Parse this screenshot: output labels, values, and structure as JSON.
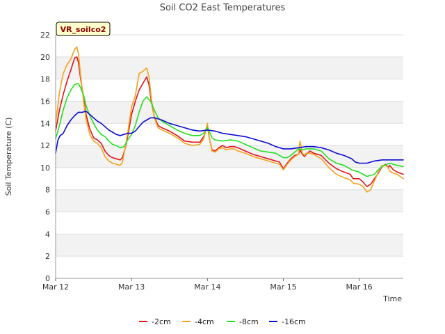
{
  "chart_data": {
    "type": "line",
    "title": "Soil CO2 East Temperatures",
    "xlabel": "Time",
    "ylabel": "Soil Temperature (C)",
    "badge": "VR_soilco2",
    "x_ticks": [
      "Mar 12",
      "Mar 13",
      "Mar 14",
      "Mar 15",
      "Mar 16"
    ],
    "x_tick_days": [
      0,
      1,
      2,
      3,
      4
    ],
    "xlim": [
      0,
      4.58
    ],
    "ylim": [
      0,
      22
    ],
    "y_ticks": [
      0,
      2,
      4,
      6,
      8,
      10,
      12,
      14,
      16,
      18,
      20,
      22
    ],
    "grid": true,
    "legend_position": "bottom",
    "series": [
      {
        "name": "-2cm",
        "color": "#e0131a",
        "points": [
          [
            0.0,
            13.3
          ],
          [
            0.05,
            15.2
          ],
          [
            0.1,
            16.6
          ],
          [
            0.15,
            17.8
          ],
          [
            0.2,
            18.8
          ],
          [
            0.25,
            19.9
          ],
          [
            0.28,
            20.0
          ],
          [
            0.3,
            19.5
          ],
          [
            0.33,
            18.0
          ],
          [
            0.37,
            16.2
          ],
          [
            0.4,
            14.8
          ],
          [
            0.45,
            13.5
          ],
          [
            0.5,
            12.7
          ],
          [
            0.55,
            12.5
          ],
          [
            0.6,
            12.2
          ],
          [
            0.65,
            11.5
          ],
          [
            0.7,
            11.1
          ],
          [
            0.75,
            10.9
          ],
          [
            0.8,
            10.8
          ],
          [
            0.85,
            10.7
          ],
          [
            0.88,
            10.9
          ],
          [
            0.92,
            11.8
          ],
          [
            0.96,
            13.2
          ],
          [
            1.0,
            14.8
          ],
          [
            1.05,
            16.0
          ],
          [
            1.1,
            17.0
          ],
          [
            1.15,
            17.6
          ],
          [
            1.2,
            18.2
          ],
          [
            1.23,
            17.5
          ],
          [
            1.26,
            16.0
          ],
          [
            1.3,
            14.6
          ],
          [
            1.35,
            13.8
          ],
          [
            1.4,
            13.6
          ],
          [
            1.5,
            13.3
          ],
          [
            1.6,
            12.9
          ],
          [
            1.7,
            12.4
          ],
          [
            1.8,
            12.3
          ],
          [
            1.9,
            12.3
          ],
          [
            1.95,
            12.8
          ],
          [
            2.0,
            13.7
          ],
          [
            2.03,
            12.5
          ],
          [
            2.06,
            11.6
          ],
          [
            2.1,
            11.5
          ],
          [
            2.15,
            11.8
          ],
          [
            2.2,
            12.0
          ],
          [
            2.25,
            11.8
          ],
          [
            2.3,
            11.9
          ],
          [
            2.35,
            11.9
          ],
          [
            2.4,
            11.8
          ],
          [
            2.5,
            11.5
          ],
          [
            2.6,
            11.2
          ],
          [
            2.7,
            11.0
          ],
          [
            2.8,
            10.8
          ],
          [
            2.9,
            10.6
          ],
          [
            2.95,
            10.5
          ],
          [
            3.0,
            9.9
          ],
          [
            3.05,
            10.4
          ],
          [
            3.1,
            10.8
          ],
          [
            3.15,
            11.1
          ],
          [
            3.2,
            11.2
          ],
          [
            3.22,
            11.6
          ],
          [
            3.25,
            11.2
          ],
          [
            3.28,
            11.0
          ],
          [
            3.3,
            11.2
          ],
          [
            3.35,
            11.5
          ],
          [
            3.4,
            11.3
          ],
          [
            3.5,
            11.1
          ],
          [
            3.6,
            10.4
          ],
          [
            3.7,
            9.9
          ],
          [
            3.8,
            9.6
          ],
          [
            3.88,
            9.4
          ],
          [
            3.92,
            9.0
          ],
          [
            4.0,
            9.0
          ],
          [
            4.05,
            8.7
          ],
          [
            4.1,
            8.3
          ],
          [
            4.15,
            8.5
          ],
          [
            4.2,
            9.0
          ],
          [
            4.25,
            9.5
          ],
          [
            4.3,
            10.1
          ],
          [
            4.35,
            10.3
          ],
          [
            4.38,
            10.0
          ],
          [
            4.4,
            10.2
          ],
          [
            4.45,
            9.8
          ],
          [
            4.5,
            9.6
          ],
          [
            4.58,
            9.4
          ]
        ]
      },
      {
        "name": "-4cm",
        "color": "#f3a31a",
        "points": [
          [
            0.0,
            14.0
          ],
          [
            0.05,
            16.8
          ],
          [
            0.1,
            18.5
          ],
          [
            0.15,
            19.3
          ],
          [
            0.2,
            19.8
          ],
          [
            0.25,
            20.7
          ],
          [
            0.28,
            20.9
          ],
          [
            0.3,
            20.3
          ],
          [
            0.33,
            18.3
          ],
          [
            0.37,
            15.9
          ],
          [
            0.4,
            14.4
          ],
          [
            0.45,
            13.0
          ],
          [
            0.5,
            12.4
          ],
          [
            0.55,
            12.2
          ],
          [
            0.6,
            11.8
          ],
          [
            0.65,
            11.0
          ],
          [
            0.7,
            10.6
          ],
          [
            0.75,
            10.4
          ],
          [
            0.8,
            10.3
          ],
          [
            0.85,
            10.2
          ],
          [
            0.88,
            10.5
          ],
          [
            0.92,
            11.9
          ],
          [
            0.96,
            13.6
          ],
          [
            1.0,
            15.5
          ],
          [
            1.05,
            16.5
          ],
          [
            1.1,
            18.5
          ],
          [
            1.15,
            18.7
          ],
          [
            1.2,
            19.0
          ],
          [
            1.23,
            18.2
          ],
          [
            1.26,
            16.3
          ],
          [
            1.3,
            14.5
          ],
          [
            1.35,
            13.6
          ],
          [
            1.4,
            13.4
          ],
          [
            1.5,
            13.1
          ],
          [
            1.6,
            12.7
          ],
          [
            1.7,
            12.2
          ],
          [
            1.8,
            12.0
          ],
          [
            1.9,
            12.1
          ],
          [
            1.95,
            12.6
          ],
          [
            2.0,
            14.0
          ],
          [
            2.03,
            12.5
          ],
          [
            2.06,
            11.5
          ],
          [
            2.1,
            11.4
          ],
          [
            2.15,
            11.7
          ],
          [
            2.2,
            11.8
          ],
          [
            2.25,
            11.6
          ],
          [
            2.3,
            11.7
          ],
          [
            2.35,
            11.7
          ],
          [
            2.4,
            11.5
          ],
          [
            2.5,
            11.3
          ],
          [
            2.6,
            11.0
          ],
          [
            2.7,
            10.8
          ],
          [
            2.8,
            10.6
          ],
          [
            2.9,
            10.4
          ],
          [
            2.95,
            10.3
          ],
          [
            3.0,
            9.8
          ],
          [
            3.05,
            10.3
          ],
          [
            3.1,
            10.7
          ],
          [
            3.15,
            11.0
          ],
          [
            3.2,
            11.2
          ],
          [
            3.22,
            12.4
          ],
          [
            3.25,
            11.3
          ],
          [
            3.28,
            11.1
          ],
          [
            3.3,
            11.3
          ],
          [
            3.35,
            11.3
          ],
          [
            3.4,
            11.2
          ],
          [
            3.5,
            10.8
          ],
          [
            3.6,
            10.0
          ],
          [
            3.7,
            9.4
          ],
          [
            3.8,
            9.1
          ],
          [
            3.88,
            8.9
          ],
          [
            3.92,
            8.6
          ],
          [
            4.0,
            8.5
          ],
          [
            4.05,
            8.3
          ],
          [
            4.1,
            7.8
          ],
          [
            4.15,
            8.0
          ],
          [
            4.2,
            8.8
          ],
          [
            4.25,
            9.6
          ],
          [
            4.3,
            10.2
          ],
          [
            4.35,
            10.2
          ],
          [
            4.38,
            10.0
          ],
          [
            4.4,
            9.7
          ],
          [
            4.45,
            9.5
          ],
          [
            4.5,
            9.4
          ],
          [
            4.58,
            9.0
          ]
        ]
      },
      {
        "name": "-8cm",
        "color": "#22e022",
        "points": [
          [
            0.0,
            12.6
          ],
          [
            0.05,
            13.8
          ],
          [
            0.1,
            15.2
          ],
          [
            0.15,
            16.3
          ],
          [
            0.2,
            17.0
          ],
          [
            0.25,
            17.5
          ],
          [
            0.3,
            17.6
          ],
          [
            0.33,
            17.2
          ],
          [
            0.37,
            16.5
          ],
          [
            0.4,
            15.6
          ],
          [
            0.45,
            14.7
          ],
          [
            0.5,
            14.0
          ],
          [
            0.55,
            13.4
          ],
          [
            0.6,
            13.0
          ],
          [
            0.65,
            12.8
          ],
          [
            0.7,
            12.4
          ],
          [
            0.75,
            12.1
          ],
          [
            0.8,
            12.0
          ],
          [
            0.85,
            11.8
          ],
          [
            0.9,
            11.9
          ],
          [
            0.95,
            12.5
          ],
          [
            1.0,
            13.0
          ],
          [
            1.05,
            13.8
          ],
          [
            1.1,
            15.0
          ],
          [
            1.15,
            16.0
          ],
          [
            1.2,
            16.4
          ],
          [
            1.25,
            16.0
          ],
          [
            1.3,
            15.2
          ],
          [
            1.35,
            14.5
          ],
          [
            1.4,
            14.2
          ],
          [
            1.5,
            13.8
          ],
          [
            1.6,
            13.4
          ],
          [
            1.7,
            13.1
          ],
          [
            1.8,
            12.9
          ],
          [
            1.9,
            12.9
          ],
          [
            1.95,
            13.1
          ],
          [
            2.0,
            13.6
          ],
          [
            2.03,
            13.2
          ],
          [
            2.06,
            12.7
          ],
          [
            2.1,
            12.5
          ],
          [
            2.2,
            12.4
          ],
          [
            2.3,
            12.5
          ],
          [
            2.4,
            12.4
          ],
          [
            2.5,
            12.1
          ],
          [
            2.6,
            11.8
          ],
          [
            2.7,
            11.5
          ],
          [
            2.8,
            11.4
          ],
          [
            2.9,
            11.3
          ],
          [
            2.95,
            11.1
          ],
          [
            3.0,
            10.9
          ],
          [
            3.05,
            10.9
          ],
          [
            3.1,
            11.1
          ],
          [
            3.15,
            11.4
          ],
          [
            3.2,
            11.7
          ],
          [
            3.25,
            11.6
          ],
          [
            3.3,
            11.7
          ],
          [
            3.4,
            11.7
          ],
          [
            3.5,
            11.5
          ],
          [
            3.6,
            10.8
          ],
          [
            3.7,
            10.4
          ],
          [
            3.8,
            10.2
          ],
          [
            3.9,
            9.8
          ],
          [
            4.0,
            9.6
          ],
          [
            4.05,
            9.4
          ],
          [
            4.1,
            9.2
          ],
          [
            4.2,
            9.4
          ],
          [
            4.25,
            9.8
          ],
          [
            4.3,
            10.1
          ],
          [
            4.4,
            10.4
          ],
          [
            4.5,
            10.2
          ],
          [
            4.58,
            10.1
          ]
        ]
      },
      {
        "name": "-16cm",
        "color": "#0b0bd0",
        "points": [
          [
            0.0,
            11.3
          ],
          [
            0.03,
            12.5
          ],
          [
            0.06,
            12.9
          ],
          [
            0.1,
            13.1
          ],
          [
            0.15,
            13.8
          ],
          [
            0.2,
            14.3
          ],
          [
            0.25,
            14.7
          ],
          [
            0.3,
            15.0
          ],
          [
            0.35,
            15.0
          ],
          [
            0.4,
            15.1
          ],
          [
            0.45,
            14.8
          ],
          [
            0.5,
            14.5
          ],
          [
            0.55,
            14.2
          ],
          [
            0.6,
            14.0
          ],
          [
            0.65,
            13.7
          ],
          [
            0.7,
            13.4
          ],
          [
            0.75,
            13.2
          ],
          [
            0.8,
            13.0
          ],
          [
            0.85,
            12.9
          ],
          [
            0.9,
            13.0
          ],
          [
            0.95,
            13.1
          ],
          [
            1.0,
            13.1
          ],
          [
            1.05,
            13.3
          ],
          [
            1.1,
            13.7
          ],
          [
            1.15,
            14.1
          ],
          [
            1.2,
            14.3
          ],
          [
            1.25,
            14.5
          ],
          [
            1.3,
            14.5
          ],
          [
            1.35,
            14.4
          ],
          [
            1.4,
            14.3
          ],
          [
            1.5,
            14.0
          ],
          [
            1.6,
            13.8
          ],
          [
            1.7,
            13.6
          ],
          [
            1.8,
            13.4
          ],
          [
            1.9,
            13.3
          ],
          [
            2.0,
            13.4
          ],
          [
            2.1,
            13.3
          ],
          [
            2.2,
            13.1
          ],
          [
            2.3,
            13.0
          ],
          [
            2.4,
            12.9
          ],
          [
            2.5,
            12.8
          ],
          [
            2.6,
            12.6
          ],
          [
            2.7,
            12.4
          ],
          [
            2.8,
            12.2
          ],
          [
            2.9,
            11.9
          ],
          [
            3.0,
            11.7
          ],
          [
            3.1,
            11.7
          ],
          [
            3.2,
            11.8
          ],
          [
            3.3,
            11.9
          ],
          [
            3.4,
            11.9
          ],
          [
            3.5,
            11.8
          ],
          [
            3.6,
            11.6
          ],
          [
            3.7,
            11.3
          ],
          [
            3.8,
            11.1
          ],
          [
            3.9,
            10.8
          ],
          [
            3.95,
            10.5
          ],
          [
            4.0,
            10.4
          ],
          [
            4.1,
            10.4
          ],
          [
            4.15,
            10.5
          ],
          [
            4.2,
            10.6
          ],
          [
            4.3,
            10.7
          ],
          [
            4.4,
            10.7
          ],
          [
            4.5,
            10.7
          ],
          [
            4.58,
            10.7
          ]
        ]
      }
    ]
  }
}
